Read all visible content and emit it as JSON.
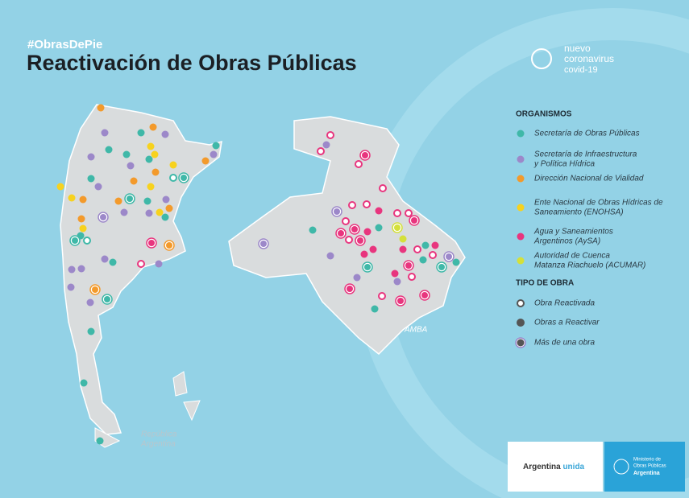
{
  "header": {
    "hashtag": "#ObrasDePie",
    "title": "Reactivación de Obras Públicas"
  },
  "badge": {
    "lines": [
      "nuevo",
      "coronavirus",
      "covid-19"
    ]
  },
  "organismos": {
    "heading": "ORGANISMOS",
    "items": [
      {
        "lines": [
          "Secretaría de Obras Públicas"
        ]
      },
      {
        "lines": [
          "Secretaría de Infraestructura",
          "y Política Hídrica"
        ]
      },
      {
        "lines": [
          "Dirección Nacional de Vialidad"
        ]
      },
      {
        "lines": [
          "Ente Nacional de Obras Hídricas de",
          "Saneamiento (ENOHSA)"
        ]
      },
      {
        "lines": [
          "Agua y Saneamientos",
          "Argentinos (AySA)"
        ]
      },
      {
        "lines": [
          "Autoridad de Cuenca",
          "Matanza Riachuelo (ACUMAR)"
        ]
      }
    ]
  },
  "tipo_de_obra": {
    "heading": "TIPO DE OBRA",
    "items": [
      "Obra Reactivada",
      "Obras a Reactivar",
      "Más de una obra"
    ]
  },
  "map_labels": {
    "country": [
      "República",
      "Argentina"
    ],
    "amba": "AMBA"
  },
  "footer": {
    "unida": [
      "Argentina",
      "unida"
    ],
    "ministry": [
      "Ministerio de",
      "Obras Públicas",
      "Argentina"
    ]
  }
}
